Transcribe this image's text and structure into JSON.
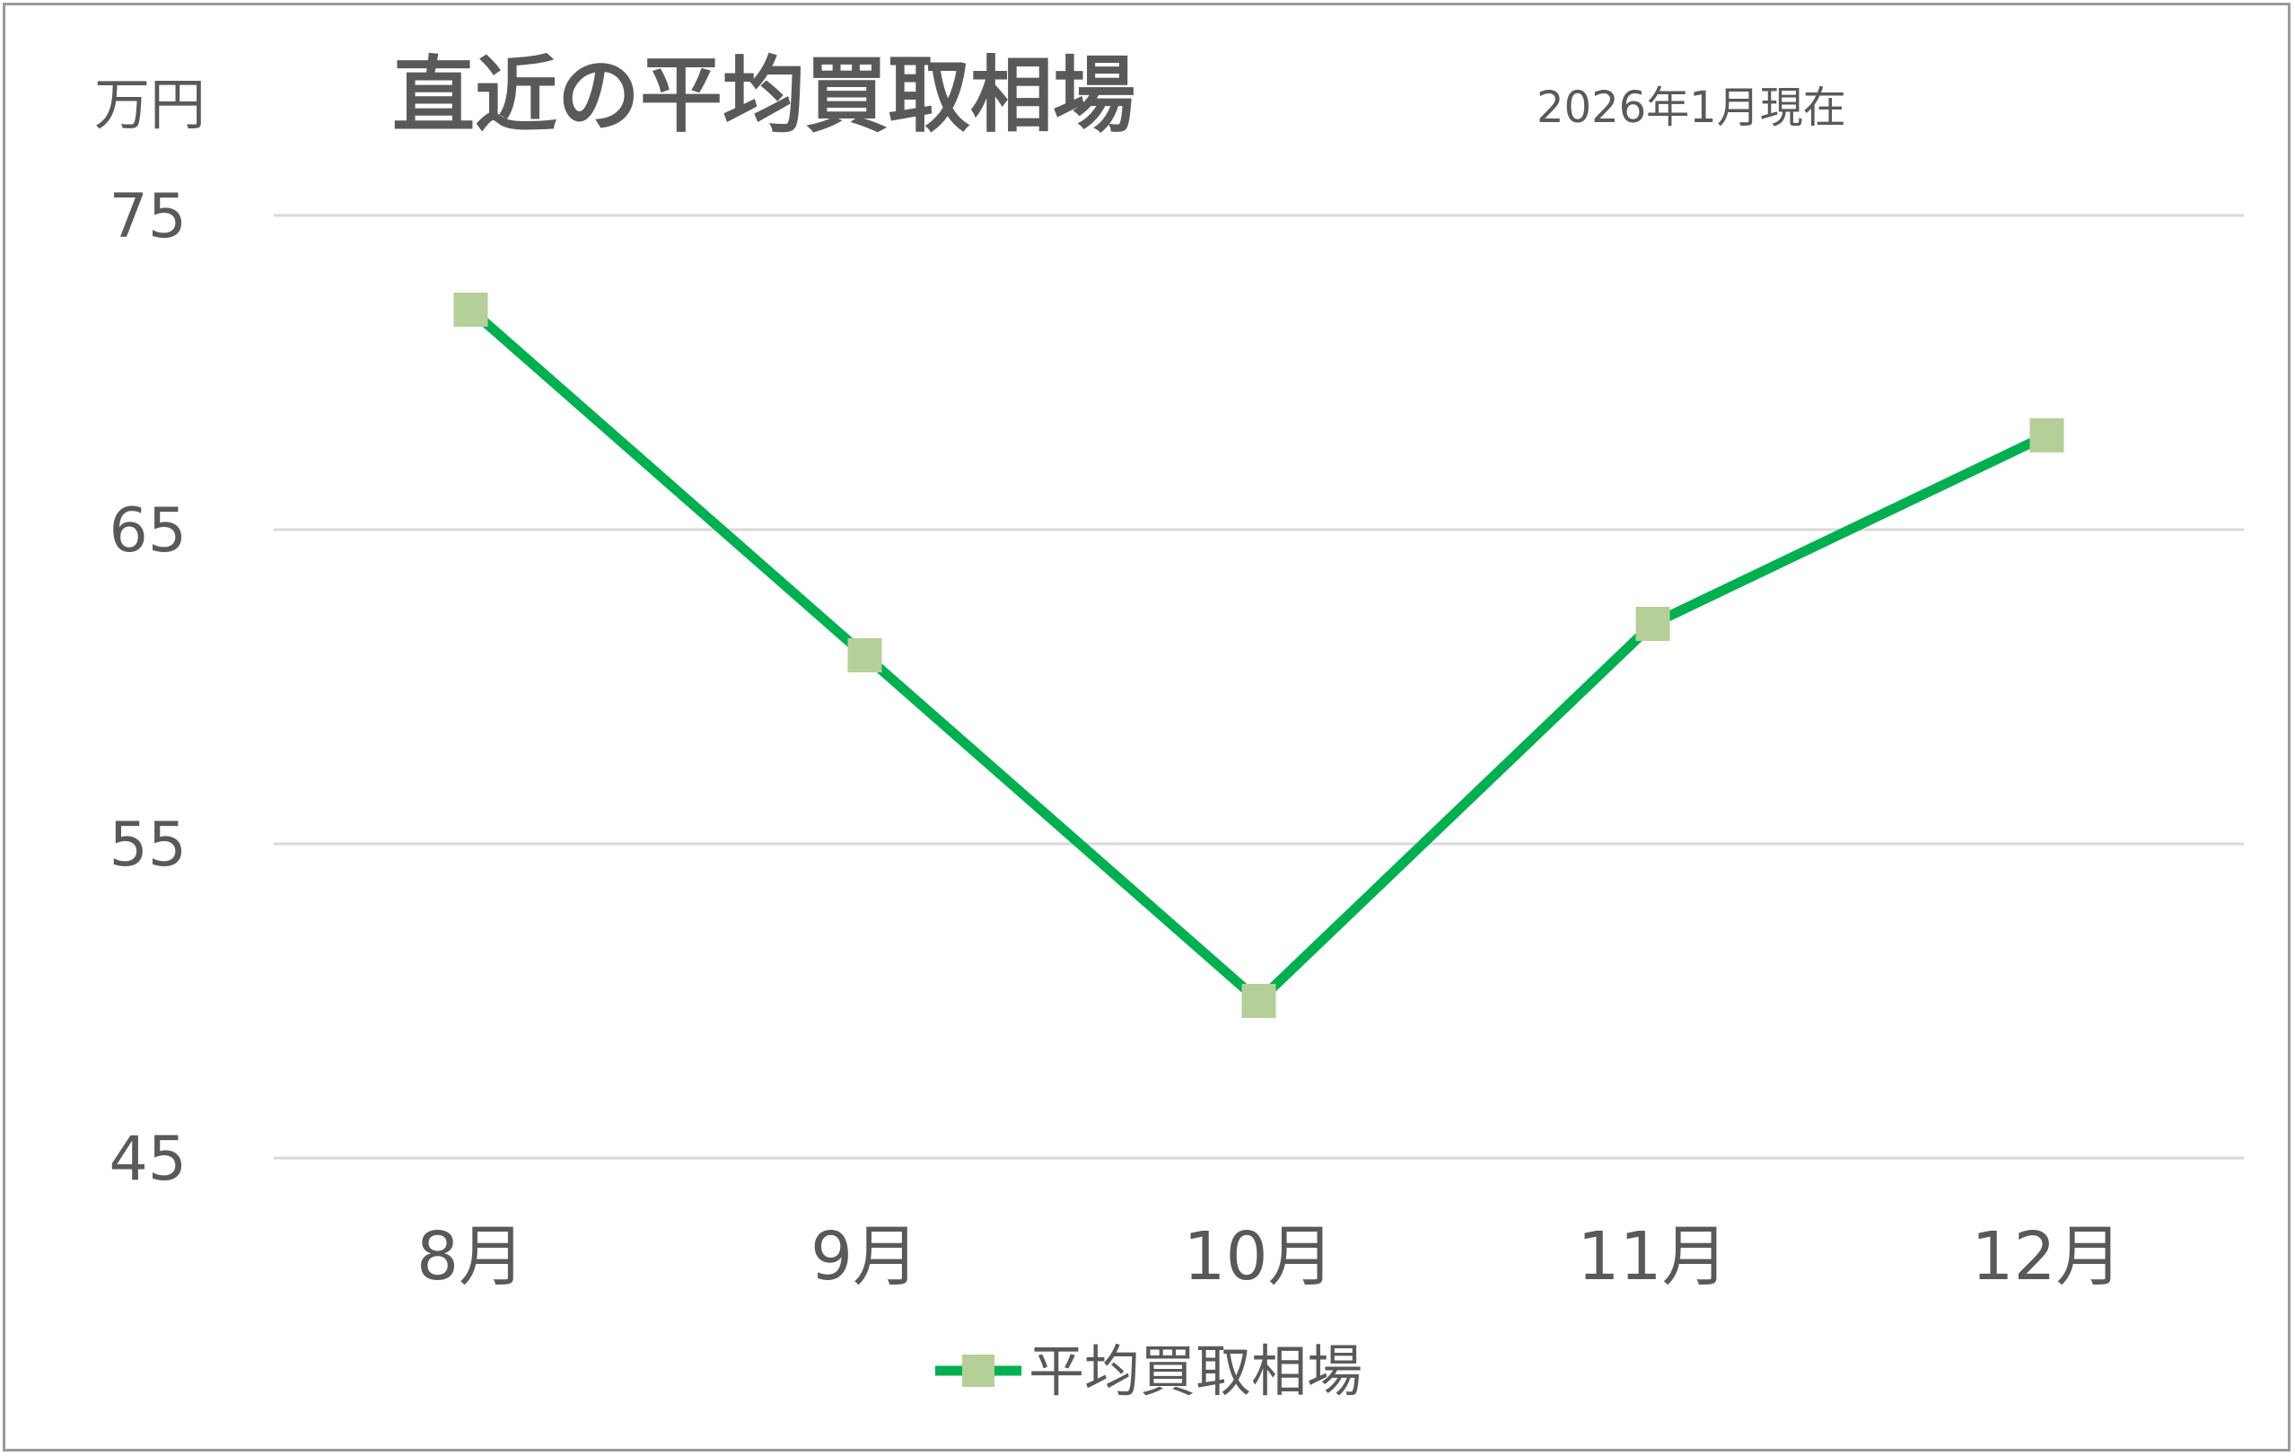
{
  "chart_data": {
    "type": "line",
    "title": "直近の平均買取相場",
    "subtitle": "2026年1月現在",
    "ylabel": "万円",
    "xlabel": "",
    "categories": [
      "8月",
      "9月",
      "10月",
      "11月",
      "12月"
    ],
    "series": [
      {
        "name": "平均買取相場",
        "values": [
          72,
          61,
          50,
          62,
          68
        ]
      }
    ],
    "ylim": [
      45,
      75
    ],
    "yticks": [
      "75",
      "65",
      "55",
      "45"
    ],
    "grid": true,
    "legend": "bottom",
    "colors": {
      "line": "#00b050",
      "marker": "#b5cf98",
      "grid": "#d9d9d9",
      "text": "#595959"
    }
  }
}
